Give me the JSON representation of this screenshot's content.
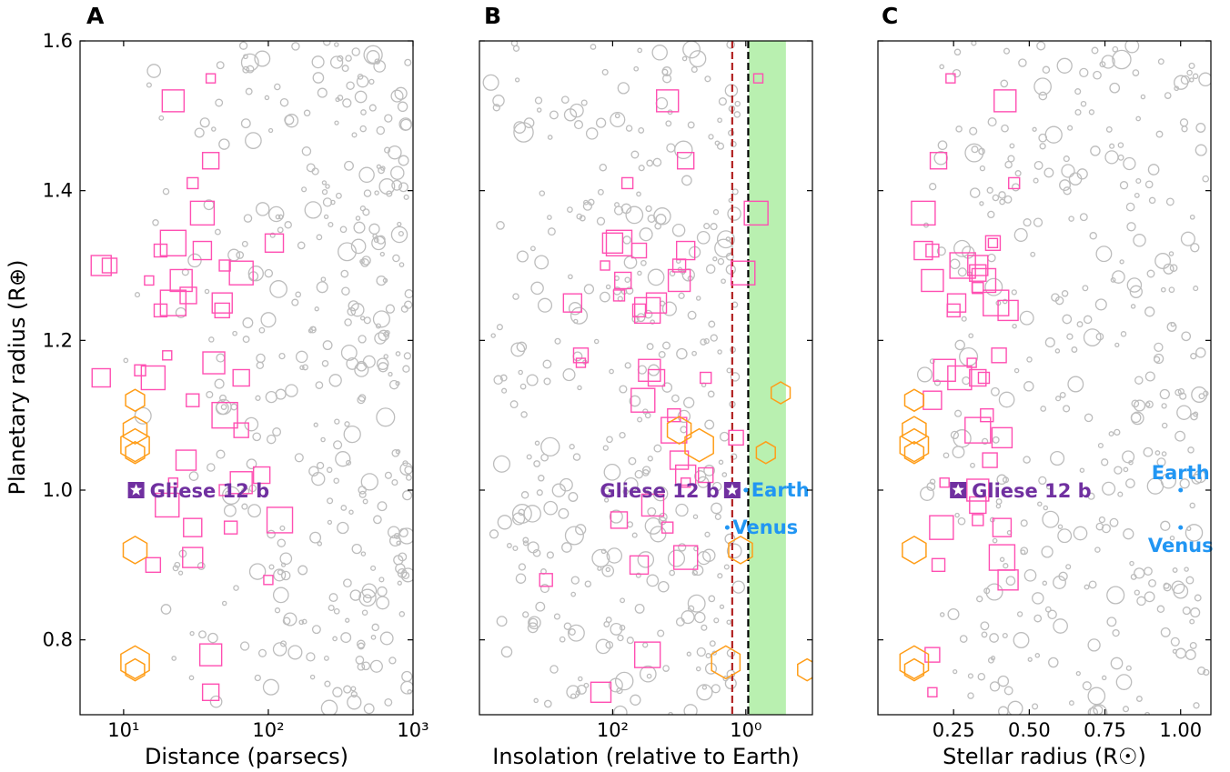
{
  "colors": {
    "background_planets": "#bdbdbd",
    "squares": "#ff4fb2",
    "hexagons": "#ff9d18",
    "gliese": "#7030a0",
    "solar_system": "#2196f3",
    "habitable_zone": "#b9f0b0",
    "line_red": "#b22222",
    "line_black": "#000000"
  },
  "chart_data": [
    {
      "type": "scatter",
      "panel": "A",
      "xlabel": "Distance (parsecs)",
      "ylabel": "Planetary radius (R⊕)",
      "xscale": "log",
      "xlim": [
        5,
        1000
      ],
      "ylim": [
        0.7,
        1.6
      ],
      "xticks": [
        {
          "value": 10,
          "label": "10¹"
        },
        {
          "value": 100,
          "label": "10²"
        },
        {
          "value": 1000,
          "label": "10³"
        }
      ],
      "yticks": [
        {
          "value": 0.8,
          "label": "0.8"
        },
        {
          "value": 1.0,
          "label": "1.0"
        },
        {
          "value": 1.2,
          "label": "1.2"
        },
        {
          "value": 1.4,
          "label": "1.4"
        },
        {
          "value": 1.6,
          "label": "1.6"
        }
      ],
      "target": {
        "x": 12.2,
        "y": 1.0,
        "label": "Gliese 12 b",
        "label_side": "right"
      },
      "squares": [
        {
          "x": 40,
          "y": 1.55
        },
        {
          "x": 22,
          "y": 1.52
        },
        {
          "x": 40,
          "y": 1.44
        },
        {
          "x": 30,
          "y": 1.41
        },
        {
          "x": 35,
          "y": 1.37
        },
        {
          "x": 35,
          "y": 1.32
        },
        {
          "x": 18,
          "y": 1.32
        },
        {
          "x": 22,
          "y": 1.33
        },
        {
          "x": 7,
          "y": 1.3
        },
        {
          "x": 8,
          "y": 1.3
        },
        {
          "x": 15,
          "y": 1.28
        },
        {
          "x": 25,
          "y": 1.28
        },
        {
          "x": 28,
          "y": 1.26
        },
        {
          "x": 50,
          "y": 1.3
        },
        {
          "x": 65,
          "y": 1.29
        },
        {
          "x": 110,
          "y": 1.33
        },
        {
          "x": 18,
          "y": 1.24
        },
        {
          "x": 22,
          "y": 1.25
        },
        {
          "x": 48,
          "y": 1.25
        },
        {
          "x": 48,
          "y": 1.24
        },
        {
          "x": 20,
          "y": 1.18
        },
        {
          "x": 42,
          "y": 1.17
        },
        {
          "x": 65,
          "y": 1.15
        },
        {
          "x": 13,
          "y": 1.16
        },
        {
          "x": 16,
          "y": 1.15
        },
        {
          "x": 7,
          "y": 1.15
        },
        {
          "x": 30,
          "y": 1.12
        },
        {
          "x": 50,
          "y": 1.1
        },
        {
          "x": 27,
          "y": 1.04
        },
        {
          "x": 65,
          "y": 1.08
        },
        {
          "x": 22,
          "y": 1.01
        },
        {
          "x": 65,
          "y": 1.01
        },
        {
          "x": 90,
          "y": 1.02
        },
        {
          "x": 50,
          "y": 1.0
        },
        {
          "x": 20,
          "y": 0.98
        },
        {
          "x": 30,
          "y": 0.95
        },
        {
          "x": 55,
          "y": 0.95
        },
        {
          "x": 120,
          "y": 0.96
        },
        {
          "x": 30,
          "y": 0.91
        },
        {
          "x": 16,
          "y": 0.9
        },
        {
          "x": 100,
          "y": 0.88
        },
        {
          "x": 40,
          "y": 0.78
        },
        {
          "x": 40,
          "y": 0.73
        }
      ],
      "hexagons": [
        {
          "x": 12,
          "y": 1.12
        },
        {
          "x": 12,
          "y": 1.08
        },
        {
          "x": 12,
          "y": 1.06
        },
        {
          "x": 12,
          "y": 1.05
        },
        {
          "x": 12,
          "y": 0.92
        },
        {
          "x": 12,
          "y": 0.77
        },
        {
          "x": 12,
          "y": 0.76
        }
      ]
    },
    {
      "type": "scatter",
      "panel": "B",
      "xlabel": "Insolation (relative to Earth)",
      "xscale": "log",
      "xaxis_reversed": true,
      "xlim": [
        10000,
        0.1
      ],
      "ylim": [
        0.7,
        1.6
      ],
      "xticks": [
        {
          "value": 100,
          "label": "10²"
        },
        {
          "value": 1,
          "label": "10⁰"
        }
      ],
      "habitable_zone": {
        "x_from": 0.9,
        "x_to": 0.25
      },
      "vlines": [
        {
          "x": 1.6,
          "color": "line_red"
        },
        {
          "x": 0.92,
          "color": "line_black"
        }
      ],
      "target": {
        "x": 1.6,
        "y": 1.0,
        "label": "Gliese 12 b",
        "label_side": "left"
      },
      "solar_system": [
        {
          "name": "Earth",
          "x": 1.0,
          "y": 1.0,
          "label_side": "right"
        },
        {
          "name": "Venus",
          "x": 1.9,
          "y": 0.95,
          "label_side": "right"
        }
      ],
      "squares": [
        {
          "x": 0.65,
          "y": 1.55
        },
        {
          "x": 15,
          "y": 1.52
        },
        {
          "x": 8,
          "y": 1.44
        },
        {
          "x": 60,
          "y": 1.41
        },
        {
          "x": 0.7,
          "y": 1.37
        },
        {
          "x": 8,
          "y": 1.32
        },
        {
          "x": 10,
          "y": 1.3
        },
        {
          "x": 80,
          "y": 1.33
        },
        {
          "x": 100,
          "y": 1.33
        },
        {
          "x": 40,
          "y": 1.32
        },
        {
          "x": 130,
          "y": 1.3
        },
        {
          "x": 10,
          "y": 1.28
        },
        {
          "x": 70,
          "y": 1.28
        },
        {
          "x": 80,
          "y": 1.26
        },
        {
          "x": 1.1,
          "y": 1.29
        },
        {
          "x": 400,
          "y": 1.25
        },
        {
          "x": 40,
          "y": 1.24
        },
        {
          "x": 30,
          "y": 1.24
        },
        {
          "x": 22,
          "y": 1.25
        },
        {
          "x": 300,
          "y": 1.18
        },
        {
          "x": 300,
          "y": 1.17
        },
        {
          "x": 28,
          "y": 1.16
        },
        {
          "x": 22,
          "y": 1.15
        },
        {
          "x": 4,
          "y": 1.15
        },
        {
          "x": 35,
          "y": 1.12
        },
        {
          "x": 10,
          "y": 1.04
        },
        {
          "x": 12,
          "y": 1.1
        },
        {
          "x": 12,
          "y": 1.08
        },
        {
          "x": 8,
          "y": 1.02
        },
        {
          "x": 4,
          "y": 1.02
        },
        {
          "x": 8,
          "y": 1.01
        },
        {
          "x": 25,
          "y": 0.98
        },
        {
          "x": 80,
          "y": 0.96
        },
        {
          "x": 15,
          "y": 0.95
        },
        {
          "x": 8,
          "y": 0.91
        },
        {
          "x": 40,
          "y": 0.9
        },
        {
          "x": 1000,
          "y": 0.88
        },
        {
          "x": 30,
          "y": 0.78
        },
        {
          "x": 150,
          "y": 0.73
        },
        {
          "x": 1.4,
          "y": 1.07
        }
      ],
      "hexagons": [
        {
          "x": 0.3,
          "y": 1.13
        },
        {
          "x": 10,
          "y": 1.08
        },
        {
          "x": 5,
          "y": 1.06
        },
        {
          "x": 0.5,
          "y": 1.05
        },
        {
          "x": 1.2,
          "y": 0.92
        },
        {
          "x": 2.0,
          "y": 0.77
        },
        {
          "x": 0.12,
          "y": 0.76
        }
      ]
    },
    {
      "type": "scatter",
      "panel": "C",
      "xlabel": "Stellar radius (R☉)",
      "xscale": "linear",
      "xlim": [
        0.0,
        1.1
      ],
      "ylim": [
        0.7,
        1.6
      ],
      "xticks": [
        {
          "value": 0.25,
          "label": "0.25"
        },
        {
          "value": 0.5,
          "label": "0.50"
        },
        {
          "value": 0.75,
          "label": "0.75"
        },
        {
          "value": 1.0,
          "label": "1.00"
        }
      ],
      "target": {
        "x": 0.265,
        "y": 1.0,
        "label": "Gliese 12 b",
        "label_side": "right"
      },
      "solar_system": [
        {
          "name": "Earth",
          "x": 1.0,
          "y": 1.0,
          "label_side": "above"
        },
        {
          "name": "Venus",
          "x": 1.0,
          "y": 0.95,
          "label_side": "below"
        }
      ],
      "squares": [
        {
          "x": 0.24,
          "y": 1.55
        },
        {
          "x": 0.42,
          "y": 1.52
        },
        {
          "x": 0.2,
          "y": 1.44
        },
        {
          "x": 0.45,
          "y": 1.41
        },
        {
          "x": 0.15,
          "y": 1.37
        },
        {
          "x": 0.15,
          "y": 1.32
        },
        {
          "x": 0.18,
          "y": 1.32
        },
        {
          "x": 0.28,
          "y": 1.3
        },
        {
          "x": 0.33,
          "y": 1.3
        },
        {
          "x": 0.38,
          "y": 1.33
        },
        {
          "x": 0.38,
          "y": 1.33
        },
        {
          "x": 0.18,
          "y": 1.28
        },
        {
          "x": 0.33,
          "y": 1.29
        },
        {
          "x": 0.33,
          "y": 1.27
        },
        {
          "x": 0.35,
          "y": 1.28
        },
        {
          "x": 0.26,
          "y": 1.25
        },
        {
          "x": 0.25,
          "y": 1.24
        },
        {
          "x": 0.39,
          "y": 1.25
        },
        {
          "x": 0.43,
          "y": 1.24
        },
        {
          "x": 0.4,
          "y": 1.18
        },
        {
          "x": 0.31,
          "y": 1.17
        },
        {
          "x": 0.22,
          "y": 1.16
        },
        {
          "x": 0.33,
          "y": 1.15
        },
        {
          "x": 0.35,
          "y": 1.15
        },
        {
          "x": 0.27,
          "y": 1.15
        },
        {
          "x": 0.18,
          "y": 1.12
        },
        {
          "x": 0.36,
          "y": 1.1
        },
        {
          "x": 0.33,
          "y": 1.08
        },
        {
          "x": 0.41,
          "y": 1.07
        },
        {
          "x": 0.37,
          "y": 1.04
        },
        {
          "x": 0.22,
          "y": 1.01
        },
        {
          "x": 0.33,
          "y": 1.0
        },
        {
          "x": 0.33,
          "y": 0.98
        },
        {
          "x": 0.33,
          "y": 0.96
        },
        {
          "x": 0.21,
          "y": 0.95
        },
        {
          "x": 0.41,
          "y": 0.95
        },
        {
          "x": 0.2,
          "y": 0.9
        },
        {
          "x": 0.41,
          "y": 0.91
        },
        {
          "x": 0.43,
          "y": 0.88
        },
        {
          "x": 0.18,
          "y": 0.78
        },
        {
          "x": 0.18,
          "y": 0.73
        }
      ],
      "hexagons": [
        {
          "x": 0.12,
          "y": 1.12
        },
        {
          "x": 0.12,
          "y": 1.08
        },
        {
          "x": 0.12,
          "y": 1.06
        },
        {
          "x": 0.12,
          "y": 1.05
        },
        {
          "x": 0.12,
          "y": 0.92
        },
        {
          "x": 0.12,
          "y": 0.77
        },
        {
          "x": 0.12,
          "y": 0.76
        }
      ]
    }
  ]
}
